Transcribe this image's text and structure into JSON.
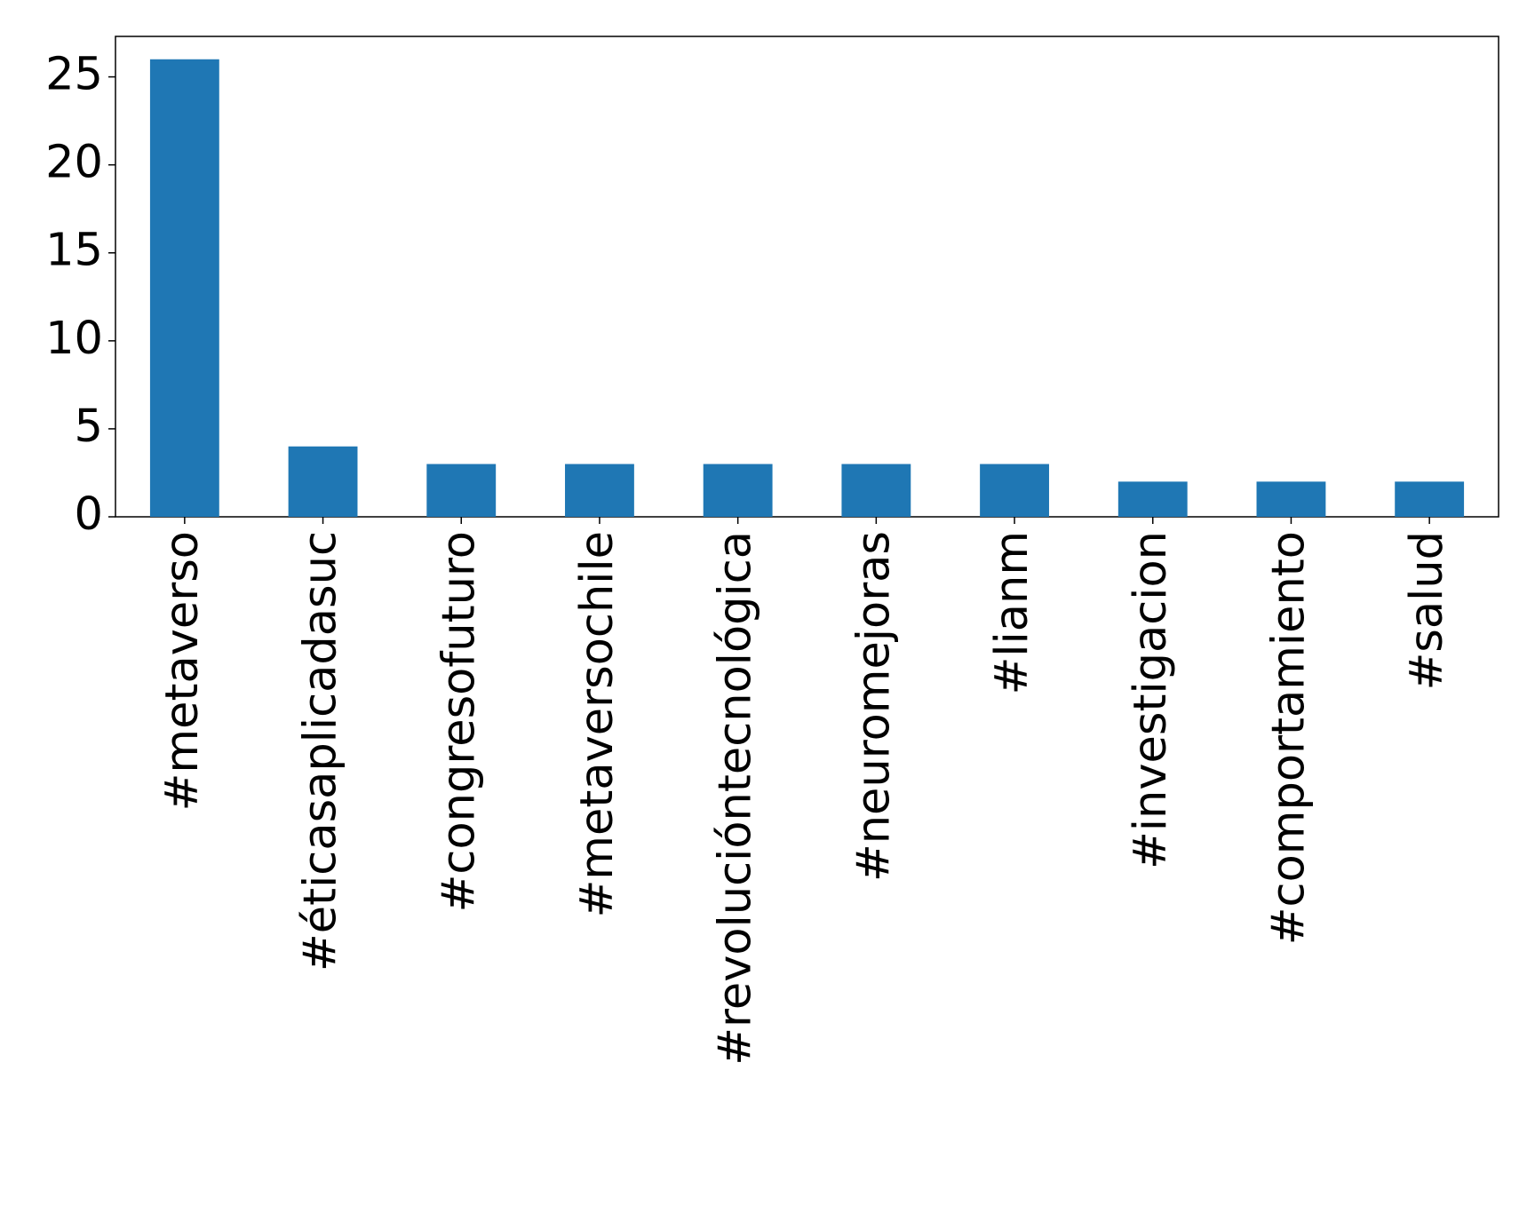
{
  "chart_data": {
    "type": "bar",
    "categories": [
      "#metaverso",
      "#éticasaplicadasuc",
      "#congresofuturo",
      "#metaversochile",
      "#revolucióntecnológica",
      "#neuromejoras",
      "#lianm",
      "#investigacion",
      "#comportamiento",
      "#salud"
    ],
    "values": [
      26,
      4,
      3,
      3,
      3,
      3,
      3,
      2,
      2,
      2
    ],
    "color": "#1f77b4",
    "ylim": [
      0,
      27.3
    ],
    "yticks": [
      0,
      5,
      10,
      15,
      20,
      25
    ],
    "grid": false
  }
}
